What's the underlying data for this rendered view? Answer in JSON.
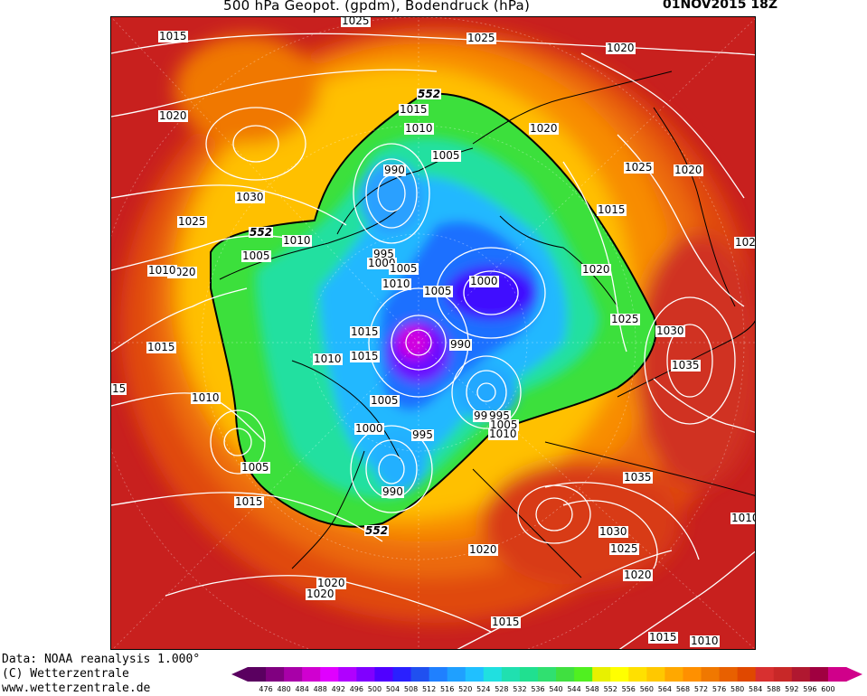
{
  "header": {
    "title": "500 hPa Geopot. (gpdm), Bodendruck (hPa)",
    "datetime": "01NOV2015 18Z"
  },
  "credits": {
    "line1": "Data: NOAA reanalysis 1.000°",
    "line2": "(C) Wetterzentrale",
    "line3": "www.wetterzentrale.de"
  },
  "colorbar": {
    "ticks": [
      "476",
      "480",
      "484",
      "488",
      "492",
      "496",
      "500",
      "504",
      "508",
      "512",
      "516",
      "520",
      "524",
      "528",
      "532",
      "536",
      "540",
      "544",
      "548",
      "552",
      "556",
      "560",
      "564",
      "568",
      "572",
      "576",
      "580",
      "584",
      "588",
      "592",
      "596",
      "600"
    ],
    "colors": [
      "#5a0060",
      "#800080",
      "#a800a8",
      "#d000d0",
      "#e000ff",
      "#b000ff",
      "#8000ff",
      "#5000ff",
      "#2a20ff",
      "#2050f0",
      "#1f80ff",
      "#1fa0ff",
      "#20c0ff",
      "#20e0e0",
      "#20e0b0",
      "#20e090",
      "#30e070",
      "#40e040",
      "#50f020",
      "#e8f000",
      "#ffff00",
      "#ffe000",
      "#ffc800",
      "#ffa800",
      "#ff9000",
      "#f07800",
      "#e86000",
      "#e04800",
      "#d83030",
      "#c82828",
      "#b01830",
      "#a00040",
      "#d0008a"
    ]
  },
  "pressure_labels": [
    {
      "text": "1015"
    },
    {
      "text": "1025"
    },
    {
      "text": "1025"
    },
    {
      "text": "1020"
    },
    {
      "text": "1020"
    },
    {
      "text": "1015"
    },
    {
      "text": "1010"
    },
    {
      "text": "1020"
    },
    {
      "text": "1025"
    },
    {
      "text": "1020"
    },
    {
      "text": "1005"
    },
    {
      "text": "990"
    },
    {
      "text": "1030"
    },
    {
      "text": "1025"
    },
    {
      "text": "1015"
    },
    {
      "text": "1010"
    },
    {
      "text": "102"
    },
    {
      "text": "1005"
    },
    {
      "text": "995"
    },
    {
      "text": "1000"
    },
    {
      "text": "1005"
    },
    {
      "text": "1020"
    },
    {
      "text": "1020"
    },
    {
      "text": "1010"
    },
    {
      "text": "1005"
    },
    {
      "text": "1000"
    },
    {
      "text": "1025"
    },
    {
      "text": "1030"
    },
    {
      "text": "1015"
    },
    {
      "text": "990"
    },
    {
      "text": "1015"
    },
    {
      "text": "1015"
    },
    {
      "text": "1010"
    },
    {
      "text": "1035"
    },
    {
      "text": "15"
    },
    {
      "text": "1010"
    },
    {
      "text": "1005"
    },
    {
      "text": "99"
    },
    {
      "text": "995"
    },
    {
      "text": "1005"
    },
    {
      "text": "1000"
    },
    {
      "text": "1010"
    },
    {
      "text": "995"
    },
    {
      "text": "1005"
    },
    {
      "text": "1035"
    },
    {
      "text": "990"
    },
    {
      "text": "1015"
    },
    {
      "text": "1030"
    },
    {
      "text": "1010"
    },
    {
      "text": "1020"
    },
    {
      "text": "1025"
    },
    {
      "text": "1020"
    },
    {
      "text": "1020"
    },
    {
      "text": "1020"
    },
    {
      "text": "1015"
    },
    {
      "text": "1015"
    },
    {
      "text": "1010"
    },
    {
      "text": "1010"
    }
  ],
  "height_labels": [
    {
      "text": "552"
    },
    {
      "text": "552"
    },
    {
      "text": "552"
    }
  ]
}
